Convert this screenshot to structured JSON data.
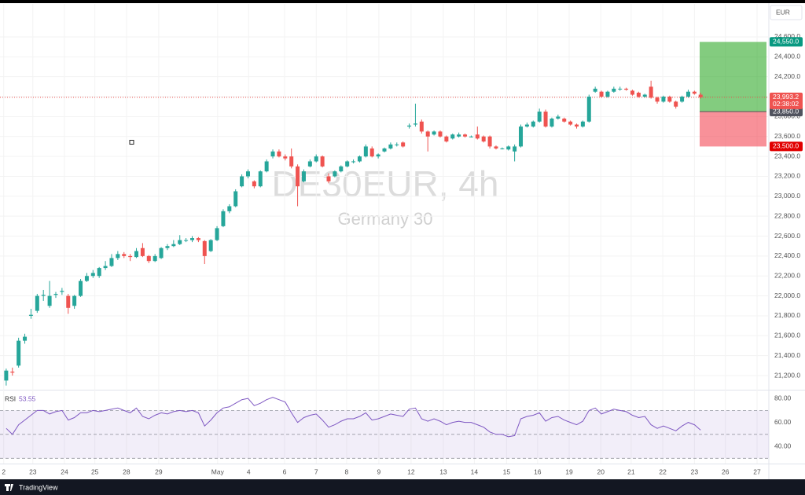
{
  "symbol_title": "DE30EUR, 4h",
  "symbol_name": "Germany 30",
  "currency": "EUR",
  "brand": "TradingView",
  "chart_data": [
    {
      "type": "candlestick",
      "up_color": "#26a69a",
      "down_color": "#ef5350",
      "candles": [
        [
          21150,
          21270,
          21100,
          21250
        ],
        [
          21240,
          21280,
          21200,
          21230
        ],
        [
          21300,
          21580,
          21280,
          21550
        ],
        [
          21550,
          21620,
          21520,
          21590
        ],
        [
          21800,
          21870,
          21770,
          21810
        ],
        [
          21850,
          22020,
          21830,
          22000
        ],
        [
          22000,
          22060,
          21950,
          22010
        ],
        [
          21900,
          22150,
          21880,
          22000
        ],
        [
          22010,
          22040,
          21980,
          22020
        ],
        [
          22040,
          22080,
          22010,
          22050
        ],
        [
          22000,
          22020,
          21820,
          21880
        ],
        [
          21900,
          22010,
          21870,
          22000
        ],
        [
          22000,
          22170,
          21990,
          22150
        ],
        [
          22150,
          22230,
          22140,
          22200
        ],
        [
          22200,
          22260,
          22180,
          22230
        ],
        [
          22200,
          22290,
          22180,
          22280
        ],
        [
          22280,
          22350,
          22260,
          22300
        ],
        [
          22300,
          22420,
          22290,
          22380
        ],
        [
          22380,
          22450,
          22360,
          22420
        ],
        [
          22420,
          22440,
          22380,
          22400
        ],
        [
          22400,
          22420,
          22350,
          22390
        ],
        [
          22390,
          22480,
          22380,
          22450
        ],
        [
          22480,
          22530,
          22390,
          22400
        ],
        [
          22400,
          22410,
          22330,
          22350
        ],
        [
          22350,
          22420,
          22340,
          22400
        ],
        [
          22380,
          22490,
          22370,
          22480
        ],
        [
          22480,
          22520,
          22460,
          22500
        ],
        [
          22500,
          22560,
          22490,
          22520
        ],
        [
          22520,
          22610,
          22510,
          22560
        ],
        [
          22560,
          22580,
          22540,
          22560
        ],
        [
          22560,
          22600,
          22540,
          22580
        ],
        [
          22580,
          22590,
          22540,
          22560
        ],
        [
          22550,
          22560,
          22320,
          22400
        ],
        [
          22450,
          22570,
          22440,
          22560
        ],
        [
          22560,
          22700,
          22550,
          22680
        ],
        [
          22700,
          22870,
          22690,
          22850
        ],
        [
          22850,
          22920,
          22830,
          22900
        ],
        [
          22900,
          23070,
          22890,
          23050
        ],
        [
          23100,
          23220,
          23090,
          23200
        ],
        [
          23200,
          23270,
          23180,
          23250
        ],
        [
          23150,
          23160,
          23080,
          23100
        ],
        [
          23100,
          23260,
          23090,
          23250
        ],
        [
          23250,
          23370,
          23240,
          23350
        ],
        [
          23400,
          23470,
          23380,
          23450
        ],
        [
          23450,
          23470,
          23390,
          23400
        ],
        [
          23400,
          23420,
          23360,
          23380
        ],
        [
          23400,
          23480,
          23280,
          23300
        ],
        [
          23300,
          23320,
          22900,
          23100
        ],
        [
          23150,
          23270,
          23140,
          23250
        ],
        [
          23300,
          23370,
          23290,
          23350
        ],
        [
          23350,
          23420,
          23340,
          23400
        ],
        [
          23400,
          23410,
          23290,
          23300
        ],
        [
          23200,
          23230,
          23130,
          23150
        ],
        [
          23200,
          23260,
          23190,
          23250
        ],
        [
          23250,
          23310,
          23240,
          23300
        ],
        [
          23300,
          23360,
          23290,
          23350
        ],
        [
          23350,
          23370,
          23330,
          23350
        ],
        [
          23350,
          23410,
          23340,
          23400
        ],
        [
          23400,
          23520,
          23390,
          23500
        ],
        [
          23480,
          23500,
          23390,
          23400
        ],
        [
          23400,
          23430,
          23380,
          23420
        ],
        [
          23450,
          23490,
          23440,
          23480
        ],
        [
          23480,
          23540,
          23470,
          23520
        ],
        [
          23520,
          23540,
          23500,
          23520
        ],
        [
          23540,
          23550,
          23490,
          23500
        ],
        [
          23700,
          23730,
          23680,
          23710
        ],
        [
          23720,
          23930,
          23700,
          23730
        ],
        [
          23750,
          23770,
          23630,
          23650
        ],
        [
          23650,
          23660,
          23450,
          23600
        ],
        [
          23620,
          23660,
          23610,
          23650
        ],
        [
          23650,
          23660,
          23590,
          23600
        ],
        [
          23600,
          23610,
          23540,
          23550
        ],
        [
          23580,
          23630,
          23570,
          23620
        ],
        [
          23600,
          23640,
          23590,
          23620
        ],
        [
          23620,
          23630,
          23590,
          23600
        ],
        [
          23600,
          23610,
          23590,
          23600
        ],
        [
          23620,
          23700,
          23570,
          23580
        ],
        [
          23600,
          23610,
          23540,
          23550
        ],
        [
          23600,
          23610,
          23480,
          23500
        ],
        [
          23500,
          23510,
          23470,
          23480
        ],
        [
          23480,
          23490,
          23470,
          23480
        ],
        [
          23470,
          23510,
          23460,
          23500
        ],
        [
          23450,
          23520,
          23350,
          23500
        ],
        [
          23500,
          23720,
          23490,
          23700
        ],
        [
          23700,
          23740,
          23690,
          23720
        ],
        [
          23700,
          23760,
          23690,
          23750
        ],
        [
          23750,
          23880,
          23740,
          23850
        ],
        [
          23850,
          23870,
          23690,
          23700
        ],
        [
          23700,
          23790,
          23690,
          23780
        ],
        [
          23780,
          23820,
          23770,
          23800
        ],
        [
          23780,
          23790,
          23740,
          23750
        ],
        [
          23750,
          23760,
          23710,
          23720
        ],
        [
          23720,
          23730,
          23680,
          23700
        ],
        [
          23700,
          23760,
          23690,
          23750
        ],
        [
          23750,
          24020,
          23740,
          24000
        ],
        [
          24050,
          24100,
          24040,
          24080
        ],
        [
          24050,
          24060,
          23990,
          24000
        ],
        [
          24000,
          24060,
          23990,
          24050
        ],
        [
          24050,
          24100,
          24040,
          24080
        ],
        [
          24080,
          24100,
          24060,
          24080
        ],
        [
          24080,
          24090,
          24060,
          24070
        ],
        [
          24060,
          24070,
          24010,
          24020
        ],
        [
          24040,
          24050,
          23990,
          24000
        ],
        [
          24000,
          24030,
          23990,
          24020
        ],
        [
          24100,
          24160,
          23980,
          23990
        ],
        [
          23990,
          24000,
          23930,
          23950
        ],
        [
          23950,
          24010,
          23940,
          24000
        ],
        [
          24000,
          24010,
          23940,
          23950
        ],
        [
          23950,
          23960,
          23880,
          23900
        ],
        [
          23950,
          24010,
          23940,
          24000
        ],
        [
          24000,
          24070,
          23990,
          24050
        ],
        [
          24050,
          24060,
          24020,
          24030
        ],
        [
          24020,
          24040,
          23980,
          23993.2
        ]
      ],
      "xlim": [
        -1,
        123
      ],
      "xticks": [
        {
          "value": -0.4,
          "label": "2"
        },
        {
          "value": 4.3,
          "label": "23"
        },
        {
          "value": 9.4,
          "label": "24"
        },
        {
          "value": 14.3,
          "label": "25"
        },
        {
          "value": 19.4,
          "label": "28"
        },
        {
          "value": 24.6,
          "label": "29"
        },
        {
          "value": 34.1,
          "label": "May"
        },
        {
          "value": 39.1,
          "label": "4"
        },
        {
          "value": 44.9,
          "label": "6"
        },
        {
          "value": 50,
          "label": "7"
        },
        {
          "value": 54.9,
          "label": "8"
        },
        {
          "value": 60.1,
          "label": "9"
        },
        {
          "value": 65.3,
          "label": "12"
        },
        {
          "value": 70.5,
          "label": "13"
        },
        {
          "value": 75.5,
          "label": "14"
        },
        {
          "value": 80.7,
          "label": "15"
        },
        {
          "value": 85.7,
          "label": "16"
        },
        {
          "value": 90.8,
          "label": "19"
        },
        {
          "value": 95.9,
          "label": "20"
        },
        {
          "value": 100.8,
          "label": "21"
        },
        {
          "value": 105.9,
          "label": "22"
        },
        {
          "value": 111,
          "label": "23"
        },
        {
          "value": 116,
          "label": "26"
        },
        {
          "value": 121.1,
          "label": "27"
        }
      ],
      "ylim": [
        21066,
        24931
      ],
      "yticks": [
        {
          "value": 21200,
          "label": "21,200.0"
        },
        {
          "value": 21400,
          "label": "21,400.0"
        },
        {
          "value": 21600,
          "label": "21,600.0"
        },
        {
          "value": 21800,
          "label": "21,800.0"
        },
        {
          "value": 22000,
          "label": "22,000.0"
        },
        {
          "value": 22200,
          "label": "22,200.0"
        },
        {
          "value": 22400,
          "label": "22,400.0"
        },
        {
          "value": 22600,
          "label": "22,600.0"
        },
        {
          "value": 22800,
          "label": "22,800.0"
        },
        {
          "value": 23000,
          "label": "23,000.0"
        },
        {
          "value": 23200,
          "label": "23,200.0"
        },
        {
          "value": 23400,
          "label": "23,400.0"
        },
        {
          "value": 23600,
          "label": "23,600.0"
        },
        {
          "value": 23800,
          "label": "23,800.0"
        },
        {
          "value": 24000,
          "label": "24,000.0"
        },
        {
          "value": 24200,
          "label": "24,200.0"
        },
        {
          "value": 24400,
          "label": "24,400.0"
        },
        {
          "value": 24600,
          "label": "24,600.0"
        }
      ],
      "last_price": {
        "value": 23993.2,
        "label": "23,993.2"
      },
      "countdown": "02:38:02",
      "position": {
        "target": {
          "value": 24550,
          "label": "24,550.0"
        },
        "entry": {
          "value": 23850,
          "label": "23,850.0"
        },
        "stop": {
          "value": 23500,
          "label": "23,500.0"
        }
      }
    },
    {
      "type": "line",
      "name": "RSI",
      "color": "#7e57c2",
      "values": [
        55,
        50,
        58,
        62,
        66,
        70,
        70,
        67,
        69,
        70,
        62,
        64,
        68,
        68,
        70,
        69,
        70,
        71,
        72,
        70,
        68,
        72,
        65,
        63,
        66,
        68,
        67,
        69,
        70,
        69,
        70,
        68,
        57,
        62,
        68,
        72,
        73,
        76,
        79,
        80,
        74,
        76,
        79,
        81,
        79,
        77,
        68,
        60,
        64,
        66,
        67,
        62,
        56,
        58,
        61,
        63,
        63,
        65,
        68,
        62,
        63,
        65,
        67,
        66,
        65,
        71,
        72,
        63,
        61,
        63,
        61,
        58,
        60,
        61,
        60,
        60,
        58,
        56,
        52,
        50,
        50,
        48,
        49,
        63,
        65,
        66,
        68,
        61,
        64,
        65,
        62,
        60,
        58,
        61,
        70,
        72,
        67,
        69,
        71,
        70,
        69,
        66,
        64,
        65,
        58,
        55,
        57,
        55,
        53,
        57,
        60,
        58,
        53.55
      ],
      "ylim": [
        25.6,
        86
      ],
      "levels": [
        70,
        50,
        30
      ],
      "yticks": [
        {
          "value": 40,
          "label": "40.00"
        },
        {
          "value": 60,
          "label": "60.00"
        },
        {
          "value": 80,
          "label": "80.00"
        }
      ]
    }
  ]
}
